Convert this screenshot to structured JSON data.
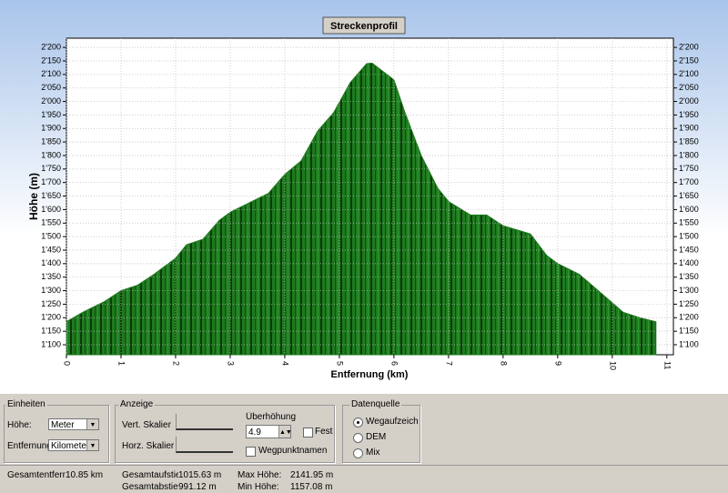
{
  "chart_data": {
    "type": "area",
    "title": "Streckenprofil",
    "ylabel": "Höhe (m)",
    "xlabel": "Entfernung (km)",
    "x": [
      0,
      0.3,
      0.7,
      1.0,
      1.3,
      1.6,
      2.0,
      2.2,
      2.5,
      2.8,
      3.0,
      3.3,
      3.7,
      4.0,
      4.3,
      4.6,
      4.9,
      5.2,
      5.5,
      5.6,
      6.0,
      6.2,
      6.5,
      6.8,
      7.0,
      7.4,
      7.7,
      8.0,
      8.5,
      8.8,
      9.0,
      9.4,
      9.8,
      10.2,
      10.5,
      10.8
    ],
    "values": [
      1185,
      1220,
      1260,
      1300,
      1320,
      1360,
      1420,
      1470,
      1490,
      1560,
      1590,
      1620,
      1660,
      1730,
      1780,
      1890,
      1960,
      2070,
      2140,
      2142,
      2080,
      1960,
      1800,
      1680,
      1630,
      1580,
      1580,
      1540,
      1510,
      1430,
      1400,
      1360,
      1290,
      1220,
      1200,
      1185
    ],
    "color": "#1f7a1f",
    "xlim": [
      0,
      11.12
    ],
    "xticks": [
      0,
      1,
      2,
      3,
      4,
      5,
      6,
      7,
      8,
      9,
      10,
      11
    ],
    "ylim": [
      1063,
      2234
    ],
    "yticks": [
      {
        "value": 1100,
        "label": "1'100"
      },
      {
        "value": 1150,
        "label": "1'150"
      },
      {
        "value": 1200,
        "label": "1'200"
      },
      {
        "value": 1250,
        "label": "1'250"
      },
      {
        "value": 1300,
        "label": "1'300"
      },
      {
        "value": 1350,
        "label": "1'350"
      },
      {
        "value": 1400,
        "label": "1'400"
      },
      {
        "value": 1450,
        "label": "1'450"
      },
      {
        "value": 1500,
        "label": "1'500"
      },
      {
        "value": 1550,
        "label": "1'550"
      },
      {
        "value": 1600,
        "label": "1'600"
      },
      {
        "value": 1650,
        "label": "1'650"
      },
      {
        "value": 1700,
        "label": "1'700"
      },
      {
        "value": 1750,
        "label": "1'750"
      },
      {
        "value": 1800,
        "label": "1'800"
      },
      {
        "value": 1850,
        "label": "1'850"
      },
      {
        "value": 1900,
        "label": "1'900"
      },
      {
        "value": 1950,
        "label": "1'950"
      },
      {
        "value": 2000,
        "label": "2'000"
      },
      {
        "value": 2050,
        "label": "2'050"
      },
      {
        "value": 2100,
        "label": "2'100"
      },
      {
        "value": 2150,
        "label": "2'150"
      },
      {
        "value": 2200,
        "label": "2'200"
      }
    ],
    "grid": true
  },
  "controls": {
    "units": {
      "title": "Einheiten",
      "height_label": "Höhe:",
      "height_value": "Meter",
      "distance_label": "Entfernung:",
      "distance_value": "Kilometer"
    },
    "display": {
      "title": "Anzeige",
      "vert_scale": "Vert. Skalier",
      "horz_scale": "Horz. Skalier",
      "exaggeration_label": "Überhöhung",
      "exaggeration_value": "4.9",
      "fixed": "Festst",
      "waypoints": "Wegpunktnamen"
    },
    "source": {
      "title": "Datenquelle",
      "options": [
        "Wegaufzeichnu",
        "DEM",
        "Mix"
      ]
    }
  },
  "status": {
    "total_distance_label": "Gesamtentfernur",
    "total_distance": "10.85 km",
    "ascent_label": "Gesamtaufstieg",
    "ascent": "1015.63 m",
    "descent_label": "Gesamtabstieg",
    "descent": "991.12 m",
    "max_label": "Max Höhe:",
    "max": "2141.95 m",
    "min_label": "Min Höhe:",
    "min": "1157.08 m"
  }
}
